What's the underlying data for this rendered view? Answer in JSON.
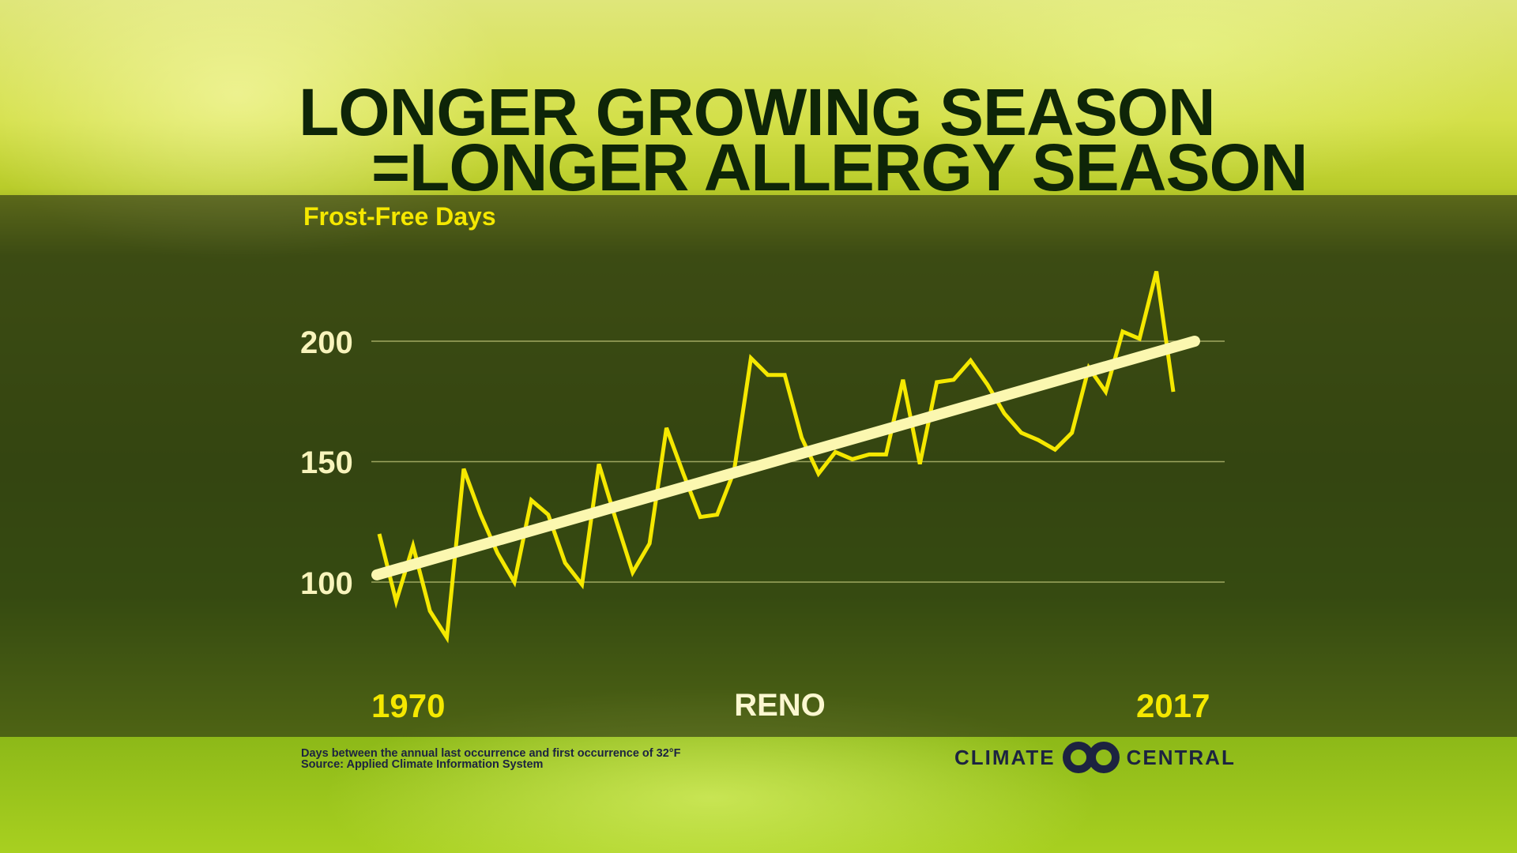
{
  "header": {
    "title_line1": "LONGER GROWING SEASON",
    "title_line2": "=LONGER ALLERGY SEASON"
  },
  "footer": {
    "note": "Days between the annual last occurrence and first occurrence of 32°F",
    "source": "Source: Applied Climate Information System"
  },
  "logo": {
    "left": "CLIMATE",
    "right": "CENTRAL",
    "color": "#1c2340"
  },
  "chart_data": {
    "type": "line",
    "title": "Frost-Free Days",
    "location": "RENO",
    "xlabel": "",
    "ylabel": "Frost-Free Days",
    "xlim": [
      1970,
      2017
    ],
    "ylim": [
      100,
      200
    ],
    "yticks": [
      "100",
      "150",
      "200"
    ],
    "xtick_labels": [
      "1970",
      "2017"
    ],
    "grid": true,
    "x": [
      1970,
      1971,
      1972,
      1973,
      1974,
      1975,
      1976,
      1977,
      1978,
      1979,
      1980,
      1981,
      1982,
      1983,
      1984,
      1985,
      1986,
      1987,
      1988,
      1989,
      1990,
      1991,
      1992,
      1993,
      1994,
      1995,
      1996,
      1997,
      1998,
      1999,
      2000,
      2001,
      2002,
      2003,
      2004,
      2005,
      2006,
      2007,
      2008,
      2009,
      2010,
      2011,
      2012,
      2013,
      2014,
      2015,
      2016,
      2017
    ],
    "series": [
      {
        "name": "Frost-Free Days",
        "color": "#f5e800",
        "values": [
          120,
          92,
          115,
          88,
          77,
          147,
          128,
          112,
          100,
          134,
          128,
          108,
          99,
          149,
          126,
          104,
          116,
          164,
          145,
          127,
          128,
          146,
          193,
          186,
          186,
          160,
          145,
          154,
          151,
          153,
          153,
          184,
          149,
          183,
          184,
          192,
          182,
          170,
          162,
          159,
          155,
          162,
          189,
          179,
          204,
          201,
          229,
          179
        ]
      },
      {
        "name": "Trend",
        "color": "#fbf7b0",
        "values_endpoints": [
          103,
          200
        ]
      }
    ]
  }
}
